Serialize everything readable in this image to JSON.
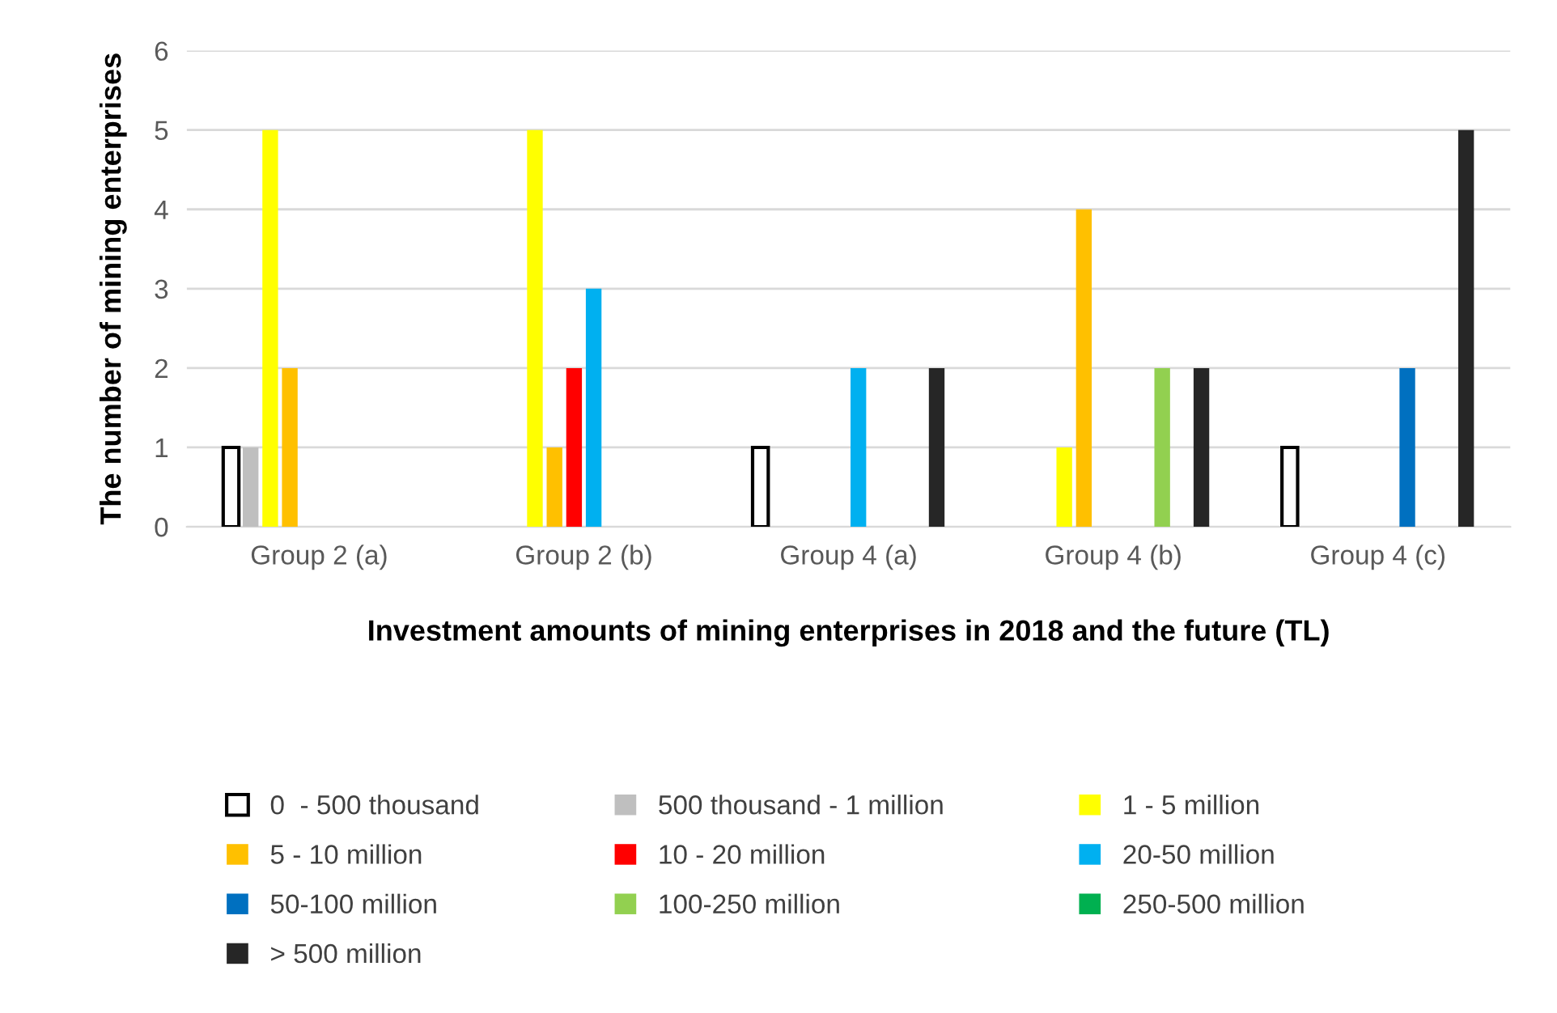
{
  "chart_data": {
    "type": "bar",
    "xlabel": "Investment amounts of mining enterprises in 2018 and the future (TL)",
    "ylabel": "The number of mining enterprises",
    "categories": [
      "Group 2 (a)",
      "Group 2 (b)",
      "Group 4 (a)",
      "Group 4 (b)",
      "Group 4 (c)"
    ],
    "series": [
      {
        "name": "0  - 500 thousand",
        "color": "#ffffff",
        "values": [
          1,
          0,
          1,
          0,
          1
        ]
      },
      {
        "name": "500 thousand - 1 million",
        "color": "#bfbfbf",
        "values": [
          1,
          0,
          0,
          0,
          0
        ]
      },
      {
        "name": "1 - 5 million",
        "color": "#ffff00",
        "values": [
          5,
          5,
          0,
          1,
          0
        ]
      },
      {
        "name": "5 - 10 million",
        "color": "#ffc000",
        "values": [
          2,
          1,
          0,
          4,
          0
        ]
      },
      {
        "name": "10 - 20 million",
        "color": "#ff0000",
        "values": [
          0,
          2,
          0,
          0,
          0
        ]
      },
      {
        "name": "20-50 million",
        "color": "#00b0f0",
        "values": [
          0,
          3,
          2,
          0,
          0
        ]
      },
      {
        "name": "50-100 million",
        "color": "#0070c0",
        "values": [
          0,
          0,
          0,
          0,
          2
        ]
      },
      {
        "name": "100-250 million",
        "color": "#92d050",
        "values": [
          0,
          0,
          0,
          2,
          0
        ]
      },
      {
        "name": "250-500 million",
        "color": "#00b050",
        "values": [
          0,
          0,
          0,
          0,
          0
        ]
      },
      {
        "name": "> 500 million",
        "color": "#262626",
        "values": [
          0,
          0,
          2,
          2,
          5
        ]
      }
    ],
    "ylim": [
      0,
      6
    ],
    "yticks": [
      0,
      1,
      2,
      3,
      4,
      5,
      6
    ],
    "grid": "y",
    "legend": "bottom"
  }
}
